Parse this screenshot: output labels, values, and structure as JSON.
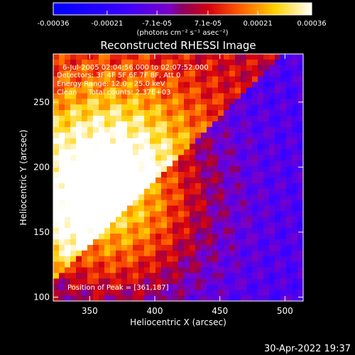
{
  "colorbar": {
    "tick_labels": [
      "-0.00036",
      "-0.00021",
      "-7.1e-05",
      "7.1e-05",
      "0.00021",
      "0.00036"
    ],
    "tick_values": [
      -0.00036,
      -0.00021,
      -7.1e-05,
      7.1e-05,
      0.00021,
      0.00036
    ],
    "range": [
      -0.00036,
      0.00036
    ],
    "unit_label": "(photons cm⁻² s⁻¹ asec⁻²)"
  },
  "chart_data": {
    "type": "heatmap",
    "title": "Reconstructed RHESSI Image",
    "xlabel": "Heliocentric X (arcsec)",
    "ylabel": "Heliocentric Y (arcsec)",
    "xlim": [
      322,
      514
    ],
    "ylim": [
      97,
      287
    ],
    "x_ticks": [
      350,
      400,
      450,
      500
    ],
    "y_ticks": [
      100,
      150,
      200,
      250
    ],
    "x_tick_labels": [
      "350",
      "400",
      "450",
      "500"
    ],
    "y_tick_labels": [
      "100",
      "150",
      "200",
      "250"
    ],
    "colormap": "blue-purple-red-yellow-white",
    "annotations": [
      "6-Jul-2005 02:04:56.000 to 02:07:52.000",
      "Detectors: 3F 4F 5F 6F 7F 8F, Att 0",
      "Energy Range: 12.0 - 25.0 keV",
      "Clean     Total counts: 2.37E+03"
    ],
    "peak_label": "Position of Peak = [361,187]",
    "peak_position": [
      361,
      187
    ],
    "grid_rows": 44,
    "grid_cols": 44,
    "values": []
  },
  "timestamp": "30-Apr-2022 19:37"
}
